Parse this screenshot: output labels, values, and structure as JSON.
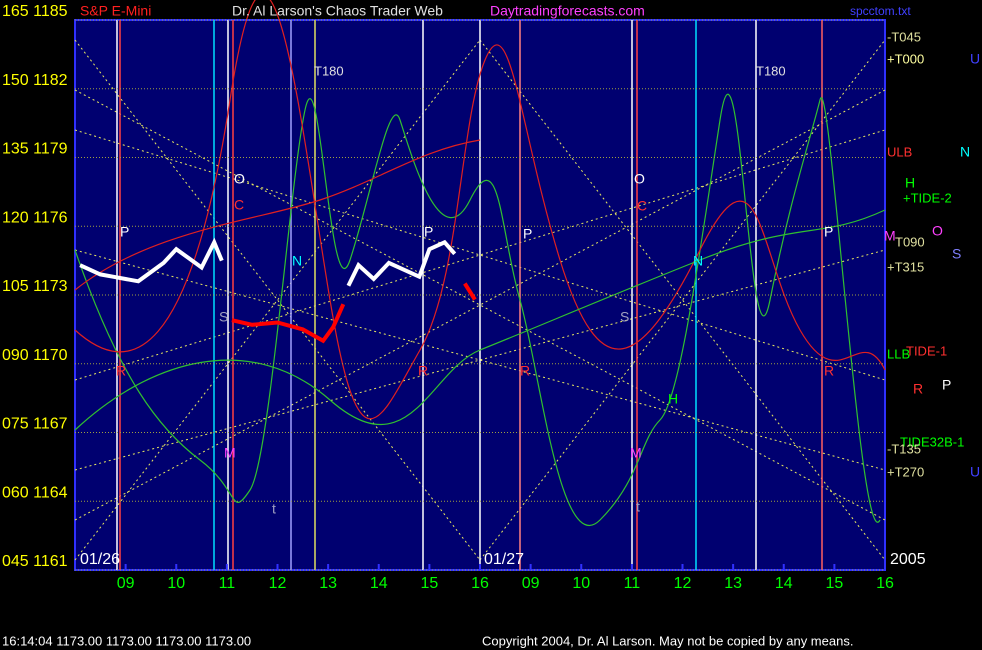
{
  "chart_data": {
    "type": "line",
    "ylim": [
      1161,
      1185
    ],
    "yticks": [
      {
        "value": 1185,
        "label": "165 1185"
      },
      {
        "value": 1182,
        "label": "150 1182"
      },
      {
        "value": 1179,
        "label": "135 1179"
      },
      {
        "value": 1176,
        "label": "120 1176"
      },
      {
        "value": 1173,
        "label": "105 1173"
      },
      {
        "value": 1170,
        "label": "090 1170"
      },
      {
        "value": 1167,
        "label": "075 1167"
      },
      {
        "value": 1164,
        "label": "060 1164"
      },
      {
        "value": 1161,
        "label": "045 1161"
      }
    ],
    "xlim": [
      8,
      24
    ],
    "xticks": [
      {
        "value": 9,
        "label": "09"
      },
      10,
      11,
      12,
      13,
      14,
      15,
      16,
      {
        "value": 17,
        "label": "09"
      },
      {
        "value": 18,
        "label": "10"
      },
      {
        "value": 19,
        "label": "11"
      },
      {
        "value": 20,
        "label": "12"
      },
      {
        "value": 21,
        "label": "13"
      },
      {
        "value": 22,
        "label": "14"
      },
      {
        "value": 23,
        "label": "15"
      },
      {
        "value": 24,
        "label": "16"
      }
    ],
    "grid": true,
    "series": [
      {
        "color": "#ffffff",
        "x": [
          8.1,
          8.5,
          8.75,
          9,
          9.25,
          9.5,
          9.75,
          10,
          10.25,
          10.5,
          10.75,
          10.9,
          null,
          13.4,
          13.6,
          13.9,
          14.2,
          14.5,
          14.8,
          15.0,
          15.3,
          15.5
        ],
        "values": [
          1174.3,
          1173.9,
          1173.8,
          1173.7,
          1173.6,
          1174.0,
          1174.4,
          1175.0,
          1174.6,
          1174.2,
          1175.3,
          1174.5,
          null,
          1173.4,
          1174.3,
          1173.7,
          1174.4,
          1174.1,
          1173.8,
          1175.0,
          1175.3,
          1174.8
        ]
      },
      {
        "color": "#ff0000",
        "x": [
          11.1,
          11.5,
          12.0,
          12.5,
          12.9,
          13.1,
          13.3,
          null,
          15.7,
          15.9
        ],
        "values": [
          1171.9,
          1171.7,
          1171.8,
          1171.5,
          1171.0,
          1171.6,
          1172.6,
          null,
          1173.5,
          1172.8
        ]
      }
    ],
    "annotations": [
      "S&P E-Mini",
      "Dr. Al Larson's Chaos Trader Web",
      "Daytradingforecasts.com",
      "spcctom.txt",
      "T180",
      "T180",
      "-T045",
      "+T000",
      "U",
      "ULB",
      "N",
      "H",
      "+TIDE-2",
      "T090",
      "S",
      "+T315",
      "LLB",
      "TIDE-1",
      "R",
      "P",
      "TIDE32B-1",
      "-T135",
      "+T270",
      "U",
      "P",
      "O",
      "C",
      "N",
      "S",
      "R",
      "M",
      "t",
      "P",
      "R",
      "P",
      "O",
      "C",
      "N",
      "S",
      "R",
      "M",
      "t",
      "H",
      "P",
      "R",
      "M",
      "O",
      "01/26",
      "01/27",
      "2005",
      "16:14:04  1173.00 1173.00 1173.00 1173.00",
      "Copyright 2004, Dr. Al Larson. May not be copied by any means."
    ]
  }
}
